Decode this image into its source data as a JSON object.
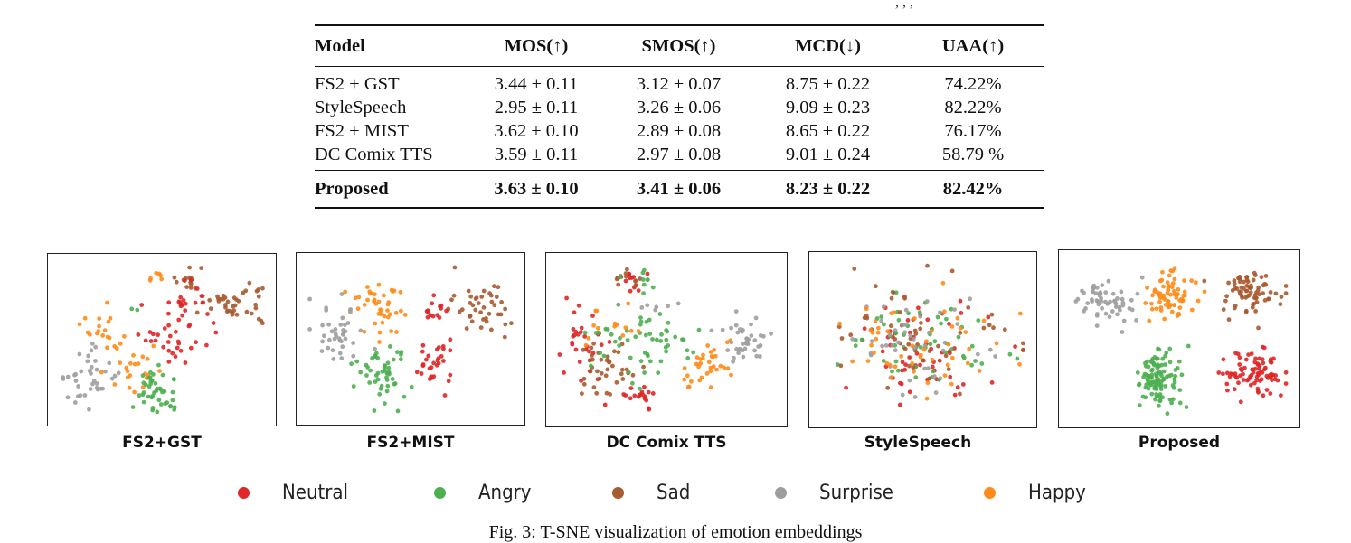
{
  "page": {
    "top_clip_text": ", , ,",
    "caption": "Fig. 3: T-SNE visualization of emotion embeddings"
  },
  "table": {
    "headers": [
      "Model",
      "MOS(↑)",
      "SMOS(↑)",
      "MCD(↓)",
      "UAA(↑)"
    ],
    "rows": [
      [
        "FS2 + GST",
        "3.44 ± 0.11",
        "3.12 ± 0.07",
        "8.75 ± 0.22",
        "74.22%"
      ],
      [
        "StyleSpeech",
        "2.95 ± 0.11",
        "3.26 ± 0.06",
        "9.09 ± 0.23",
        "82.22%"
      ],
      [
        "FS2 + MIST",
        "3.62 ± 0.10",
        "2.89 ± 0.08",
        "8.65 ± 0.22",
        "76.17%"
      ],
      [
        "DC Comix TTS",
        "3.59 ± 0.11",
        "2.97 ± 0.08",
        "9.01 ± 0.24",
        "58.79 %"
      ]
    ],
    "best_row": [
      "Proposed",
      "3.63 ± 0.10",
      "3.41 ± 0.06",
      "8.23 ± 0.22",
      "82.42%"
    ]
  },
  "legend": [
    {
      "label": "Neutral",
      "color": "#e02626"
    },
    {
      "label": "Angry",
      "color": "#4caf50"
    },
    {
      "label": "Sad",
      "color": "#a85a30"
    },
    {
      "label": "Surprise",
      "color": "#9e9e9e"
    },
    {
      "label": "Happy",
      "color": "#ff8c1a"
    }
  ],
  "chart_data": [
    {
      "type": "scatter",
      "title": "FS2+GST",
      "xlabel": "",
      "ylabel": "",
      "xlim": [
        0,
        1
      ],
      "ylim": [
        0,
        1
      ],
      "grid": false,
      "clusters": [
        {
          "class": "Sad",
          "center": [
            0.85,
            0.28
          ],
          "spread": [
            0.09,
            0.09
          ],
          "count": 40
        },
        {
          "class": "Sad",
          "center": [
            0.63,
            0.12
          ],
          "spread": [
            0.05,
            0.04
          ],
          "count": 14
        },
        {
          "class": "Neutral",
          "center": [
            0.6,
            0.25
          ],
          "spread": [
            0.07,
            0.08
          ],
          "count": 22
        },
        {
          "class": "Neutral",
          "center": [
            0.55,
            0.52
          ],
          "spread": [
            0.1,
            0.1
          ],
          "count": 30
        },
        {
          "class": "Happy",
          "center": [
            0.47,
            0.1
          ],
          "spread": [
            0.03,
            0.03
          ],
          "count": 6
        },
        {
          "class": "Happy",
          "center": [
            0.21,
            0.43
          ],
          "spread": [
            0.08,
            0.07
          ],
          "count": 18
        },
        {
          "class": "Happy",
          "center": [
            0.36,
            0.68
          ],
          "spread": [
            0.09,
            0.09
          ],
          "count": 24
        },
        {
          "class": "Surprise",
          "center": [
            0.16,
            0.75
          ],
          "spread": [
            0.08,
            0.11
          ],
          "count": 38
        },
        {
          "class": "Angry",
          "center": [
            0.48,
            0.83
          ],
          "spread": [
            0.08,
            0.09
          ],
          "count": 45
        },
        {
          "class": "Angry",
          "center": [
            0.37,
            0.3
          ],
          "spread": [
            0.01,
            0.01
          ],
          "count": 2
        }
      ]
    },
    {
      "type": "scatter",
      "title": "FS2+MIST",
      "xlabel": "",
      "ylabel": "",
      "xlim": [
        0,
        1
      ],
      "ylim": [
        0,
        1
      ],
      "grid": false,
      "clusters": [
        {
          "class": "Sad",
          "center": [
            0.84,
            0.3
          ],
          "spread": [
            0.09,
            0.11
          ],
          "count": 42
        },
        {
          "class": "Happy",
          "center": [
            0.35,
            0.3
          ],
          "spread": [
            0.08,
            0.13
          ],
          "count": 42
        },
        {
          "class": "Surprise",
          "center": [
            0.15,
            0.48
          ],
          "spread": [
            0.08,
            0.13
          ],
          "count": 40
        },
        {
          "class": "Neutral",
          "center": [
            0.62,
            0.3
          ],
          "spread": [
            0.04,
            0.05
          ],
          "count": 14
        },
        {
          "class": "Neutral",
          "center": [
            0.62,
            0.65
          ],
          "spread": [
            0.05,
            0.11
          ],
          "count": 30
        },
        {
          "class": "Angry",
          "center": [
            0.36,
            0.75
          ],
          "spread": [
            0.08,
            0.13
          ],
          "count": 50
        }
      ]
    },
    {
      "type": "scatter",
      "title": "DC Comix TTS",
      "xlabel": "",
      "ylabel": "",
      "xlim": [
        0,
        1
      ],
      "ylim": [
        0,
        1
      ],
      "grid": false,
      "clusters": [
        {
          "class": "Neutral",
          "center": [
            0.35,
            0.12
          ],
          "spread": [
            0.07,
            0.06
          ],
          "count": 14
        },
        {
          "class": "Sad",
          "center": [
            0.35,
            0.12
          ],
          "spread": [
            0.06,
            0.05
          ],
          "count": 10
        },
        {
          "class": "Angry",
          "center": [
            0.4,
            0.12
          ],
          "spread": [
            0.07,
            0.05
          ],
          "count": 10
        },
        {
          "class": "Neutral",
          "center": [
            0.12,
            0.55
          ],
          "spread": [
            0.07,
            0.18
          ],
          "count": 30
        },
        {
          "class": "Sad",
          "center": [
            0.22,
            0.65
          ],
          "spread": [
            0.1,
            0.14
          ],
          "count": 40
        },
        {
          "class": "Angry",
          "center": [
            0.4,
            0.52
          ],
          "spread": [
            0.14,
            0.14
          ],
          "count": 55
        },
        {
          "class": "Happy",
          "center": [
            0.25,
            0.4
          ],
          "spread": [
            0.1,
            0.1
          ],
          "count": 14
        },
        {
          "class": "Happy",
          "center": [
            0.68,
            0.65
          ],
          "spread": [
            0.07,
            0.1
          ],
          "count": 34
        },
        {
          "class": "Surprise",
          "center": [
            0.85,
            0.5
          ],
          "spread": [
            0.07,
            0.1
          ],
          "count": 40
        },
        {
          "class": "Surprise",
          "center": [
            0.5,
            0.28
          ],
          "spread": [
            0.06,
            0.02
          ],
          "count": 6
        },
        {
          "class": "Neutral",
          "center": [
            0.38,
            0.87
          ],
          "spread": [
            0.06,
            0.05
          ],
          "count": 18
        }
      ]
    },
    {
      "type": "scatter",
      "title": "StyleSpeech",
      "xlabel": "",
      "ylabel": "",
      "xlim": [
        0,
        1
      ],
      "ylim": [
        0,
        1
      ],
      "grid": false,
      "clusters": [
        {
          "class": "Neutral",
          "center": [
            0.45,
            0.55
          ],
          "spread": [
            0.24,
            0.22
          ],
          "count": 55
        },
        {
          "class": "Angry",
          "center": [
            0.5,
            0.5
          ],
          "spread": [
            0.22,
            0.2
          ],
          "count": 55
        },
        {
          "class": "Sad",
          "center": [
            0.5,
            0.45
          ],
          "spread": [
            0.25,
            0.22
          ],
          "count": 50
        },
        {
          "class": "Surprise",
          "center": [
            0.48,
            0.5
          ],
          "spread": [
            0.2,
            0.18
          ],
          "count": 45
        },
        {
          "class": "Happy",
          "center": [
            0.48,
            0.55
          ],
          "spread": [
            0.25,
            0.22
          ],
          "count": 50
        }
      ]
    },
    {
      "type": "scatter",
      "title": "Proposed",
      "xlabel": "",
      "ylabel": "",
      "xlim": [
        0,
        1
      ],
      "ylim": [
        0,
        1
      ],
      "grid": false,
      "clusters": [
        {
          "class": "Surprise",
          "center": [
            0.18,
            0.27
          ],
          "spread": [
            0.08,
            0.09
          ],
          "count": 60
        },
        {
          "class": "Happy",
          "center": [
            0.45,
            0.24
          ],
          "spread": [
            0.07,
            0.11
          ],
          "count": 70
        },
        {
          "class": "Sad",
          "center": [
            0.82,
            0.2
          ],
          "spread": [
            0.09,
            0.09
          ],
          "count": 75
        },
        {
          "class": "Angry",
          "center": [
            0.4,
            0.75
          ],
          "spread": [
            0.06,
            0.12
          ],
          "count": 110
        },
        {
          "class": "Neutral",
          "center": [
            0.84,
            0.72
          ],
          "spread": [
            0.09,
            0.09
          ],
          "count": 85
        }
      ]
    }
  ]
}
